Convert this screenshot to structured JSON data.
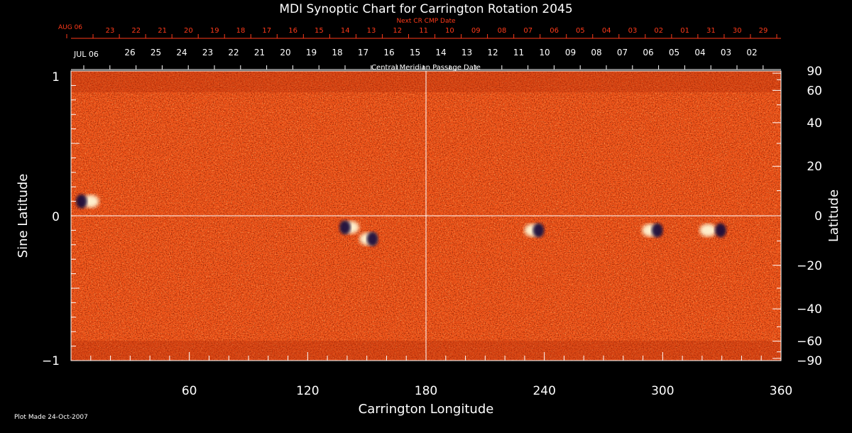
{
  "title": "MDI Synoptic Chart for Carrington Rotation 2045",
  "footer": "Plot Made 24-Oct-2007",
  "colors": {
    "background": "#000000",
    "text": "#ffffff",
    "next_cr_text": "#ff3a1a",
    "map_base": "#f0561a",
    "positive_polarity": "#fff7d6",
    "negative_polarity": "#1a0f3a"
  },
  "chart_data": {
    "type": "heatmap",
    "title": "MDI Synoptic Chart for Carrington Rotation 2045",
    "xlabel": "Carrington Longitude",
    "ylabel_left": "Sine Latitude",
    "ylabel_right": "Latitude",
    "xlim": [
      0,
      360
    ],
    "ylim": [
      -1,
      1
    ],
    "x_ticks": [
      "60",
      "120",
      "180",
      "240",
      "300",
      "360"
    ],
    "y_left_ticks": [
      "1",
      "0",
      "−1"
    ],
    "y_right_ticks": [
      "90",
      "60",
      "40",
      "20",
      "0",
      "−20",
      "−40",
      "−60",
      "−90"
    ],
    "y_right_tick_values": [
      90,
      60,
      40,
      20,
      0,
      -20,
      -40,
      -60,
      -90
    ],
    "top_axis_1": {
      "label": "Next CR CMP Date",
      "start_label": "AUG 06",
      "dates": [
        "23",
        "22",
        "21",
        "20",
        "19",
        "18",
        "17",
        "16",
        "15",
        "14",
        "13",
        "12",
        "11",
        "10",
        "09",
        "08",
        "07",
        "06",
        "05",
        "04",
        "03",
        "02",
        "01",
        "31",
        "30",
        "29"
      ]
    },
    "top_axis_2": {
      "label": "Central Meridian Passage Date",
      "start_label": "JUL 06",
      "dates": [
        "26",
        "25",
        "24",
        "23",
        "22",
        "21",
        "20",
        "19",
        "18",
        "17",
        "16",
        "15",
        "14",
        "13",
        "12",
        "11",
        "10",
        "09",
        "08",
        "07",
        "06",
        "05",
        "04",
        "03",
        "02"
      ]
    },
    "reference_lines": {
      "longitude": 180,
      "sine_latitude": 0
    },
    "active_regions": [
      {
        "longitude": 7,
        "sine_latitude": 0.1,
        "positive_offset": 8
      },
      {
        "longitude": 140,
        "sine_latitude": -0.08,
        "positive_offset": 5
      },
      {
        "longitude": 152,
        "sine_latitude": -0.16,
        "positive_offset": -4
      },
      {
        "longitude": 236,
        "sine_latitude": -0.1,
        "positive_offset": -5
      },
      {
        "longitude": 296,
        "sine_latitude": -0.1,
        "positive_offset": -6
      },
      {
        "longitude": 327,
        "sine_latitude": -0.1,
        "positive_offset": -11
      }
    ]
  }
}
